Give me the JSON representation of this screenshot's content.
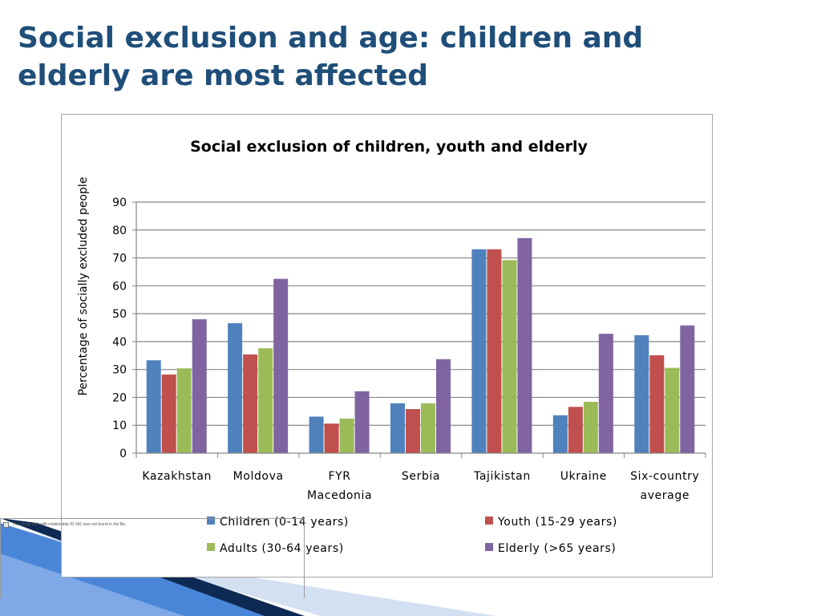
{
  "slide": {
    "title": "Social exclusion and age: children and elderly are most affected",
    "broken_image_text": "The image part with relationship ID rId1 was not found in the file."
  },
  "colors": {
    "title": "#1f4e79",
    "children": "#4f81bd",
    "youth": "#c0504d",
    "adults": "#9bbb59",
    "elderly": "#8064a2",
    "gridline": "#868686",
    "deco_dark": "#0d2a55",
    "deco_blue": "#3e78c8",
    "deco_light": "#c9d9ef"
  },
  "chart_data": {
    "type": "bar",
    "title": "Social exclusion of children, youth and elderly",
    "xlabel": "",
    "ylabel": "Percentage of socially excluded people",
    "ylim": [
      0,
      90
    ],
    "yticks": [
      0,
      10,
      20,
      30,
      40,
      50,
      60,
      70,
      80,
      90
    ],
    "grid": true,
    "legend_position": "bottom",
    "categories": [
      [
        "Kazakhstan"
      ],
      [
        "Moldova"
      ],
      [
        "FYR",
        "Macedonia"
      ],
      [
        "Serbia"
      ],
      [
        "Tajikistan"
      ],
      [
        "Ukraine"
      ],
      [
        "Six-country",
        "average"
      ]
    ],
    "series": [
      {
        "name": "Children (0-14 years)",
        "color_key": "children",
        "values": [
          33.3,
          46.6,
          13.1,
          17.9,
          73.1,
          13.6,
          42.3
        ]
      },
      {
        "name": "Youth (15-29 years)",
        "color_key": "youth",
        "values": [
          28.2,
          35.4,
          10.6,
          15.8,
          73.1,
          16.6,
          35.1
        ]
      },
      {
        "name": "Adults (30-64 years)",
        "color_key": "adults",
        "values": [
          30.4,
          37.6,
          12.4,
          17.9,
          69.2,
          18.4,
          30.6
        ]
      },
      {
        "name": "Elderly (>65 years)",
        "color_key": "elderly",
        "values": [
          48.0,
          62.5,
          22.2,
          33.7,
          77.1,
          42.8,
          45.8
        ]
      }
    ]
  }
}
